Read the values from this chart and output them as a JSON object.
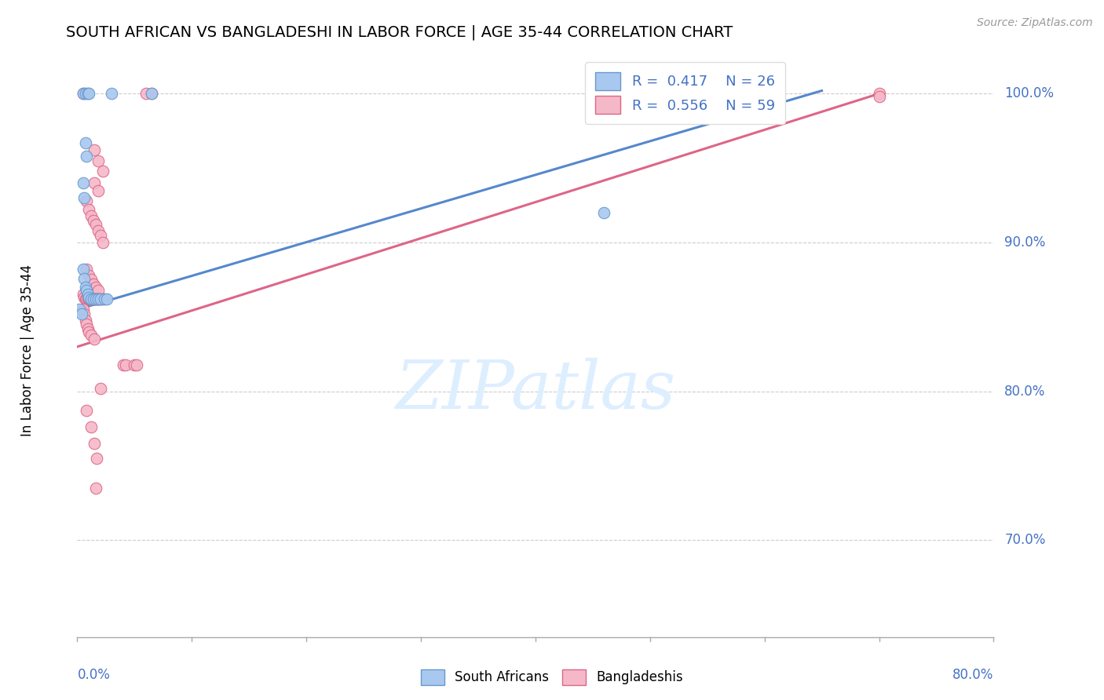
{
  "title": "SOUTH AFRICAN VS BANGLADESHI IN LABOR FORCE | AGE 35-44 CORRELATION CHART",
  "source": "Source: ZipAtlas.com",
  "ylabel": "In Labor Force | Age 35-44",
  "ytick_labels": [
    "70.0%",
    "80.0%",
    "90.0%",
    "100.0%"
  ],
  "ytick_values": [
    0.7,
    0.8,
    0.9,
    1.0
  ],
  "xmin": 0.0,
  "xmax": 0.8,
  "ymin": 0.635,
  "ymax": 1.03,
  "sa_color": "#a8c8f0",
  "bd_color": "#f5b8c8",
  "sa_edge_color": "#6699cc",
  "bd_edge_color": "#dd6688",
  "sa_line_color": "#5588cc",
  "bd_line_color": "#dd6688",
  "watermark_color": "#ddeeff",
  "sa_line_x0": 0.0,
  "sa_line_y0": 0.855,
  "sa_line_x1": 0.65,
  "sa_line_y1": 1.002,
  "bd_line_x0": 0.0,
  "bd_line_y0": 0.83,
  "bd_line_x1": 0.7,
  "bd_line_y1": 1.0,
  "sa_points": [
    [
      0.005,
      1.0
    ],
    [
      0.007,
      1.0
    ],
    [
      0.009,
      1.0
    ],
    [
      0.01,
      1.0
    ],
    [
      0.03,
      1.0
    ],
    [
      0.065,
      1.0
    ],
    [
      0.007,
      0.967
    ],
    [
      0.008,
      0.958
    ],
    [
      0.005,
      0.94
    ],
    [
      0.006,
      0.93
    ],
    [
      0.005,
      0.882
    ],
    [
      0.006,
      0.876
    ],
    [
      0.007,
      0.87
    ],
    [
      0.008,
      0.868
    ],
    [
      0.009,
      0.865
    ],
    [
      0.01,
      0.863
    ],
    [
      0.012,
      0.862
    ],
    [
      0.014,
      0.862
    ],
    [
      0.016,
      0.862
    ],
    [
      0.018,
      0.862
    ],
    [
      0.02,
      0.862
    ],
    [
      0.024,
      0.862
    ],
    [
      0.026,
      0.862
    ],
    [
      0.002,
      0.855
    ],
    [
      0.004,
      0.852
    ],
    [
      0.46,
      0.92
    ]
  ],
  "bd_points": [
    [
      0.005,
      1.0
    ],
    [
      0.06,
      1.0
    ],
    [
      0.065,
      1.0
    ],
    [
      0.7,
      1.0
    ],
    [
      0.015,
      0.962
    ],
    [
      0.018,
      0.955
    ],
    [
      0.022,
      0.948
    ],
    [
      0.015,
      0.94
    ],
    [
      0.018,
      0.935
    ],
    [
      0.008,
      0.928
    ],
    [
      0.01,
      0.922
    ],
    [
      0.012,
      0.918
    ],
    [
      0.014,
      0.915
    ],
    [
      0.016,
      0.912
    ],
    [
      0.018,
      0.908
    ],
    [
      0.02,
      0.905
    ],
    [
      0.022,
      0.9
    ],
    [
      0.008,
      0.882
    ],
    [
      0.01,
      0.878
    ],
    [
      0.012,
      0.875
    ],
    [
      0.014,
      0.872
    ],
    [
      0.016,
      0.87
    ],
    [
      0.018,
      0.868
    ],
    [
      0.005,
      0.865
    ],
    [
      0.006,
      0.863
    ],
    [
      0.007,
      0.862
    ],
    [
      0.008,
      0.862
    ],
    [
      0.009,
      0.862
    ],
    [
      0.01,
      0.862
    ],
    [
      0.011,
      0.862
    ],
    [
      0.012,
      0.862
    ],
    [
      0.013,
      0.862
    ],
    [
      0.014,
      0.862
    ],
    [
      0.015,
      0.862
    ],
    [
      0.016,
      0.862
    ],
    [
      0.017,
      0.862
    ],
    [
      0.018,
      0.862
    ],
    [
      0.019,
      0.862
    ],
    [
      0.02,
      0.862
    ],
    [
      0.022,
      0.862
    ],
    [
      0.005,
      0.855
    ],
    [
      0.006,
      0.852
    ],
    [
      0.007,
      0.848
    ],
    [
      0.008,
      0.845
    ],
    [
      0.009,
      0.842
    ],
    [
      0.01,
      0.84
    ],
    [
      0.012,
      0.838
    ],
    [
      0.015,
      0.835
    ],
    [
      0.04,
      0.818
    ],
    [
      0.042,
      0.818
    ],
    [
      0.05,
      0.818
    ],
    [
      0.052,
      0.818
    ],
    [
      0.02,
      0.802
    ],
    [
      0.008,
      0.787
    ],
    [
      0.012,
      0.776
    ],
    [
      0.015,
      0.765
    ],
    [
      0.017,
      0.755
    ],
    [
      0.016,
      0.735
    ],
    [
      0.7,
      0.998
    ]
  ]
}
